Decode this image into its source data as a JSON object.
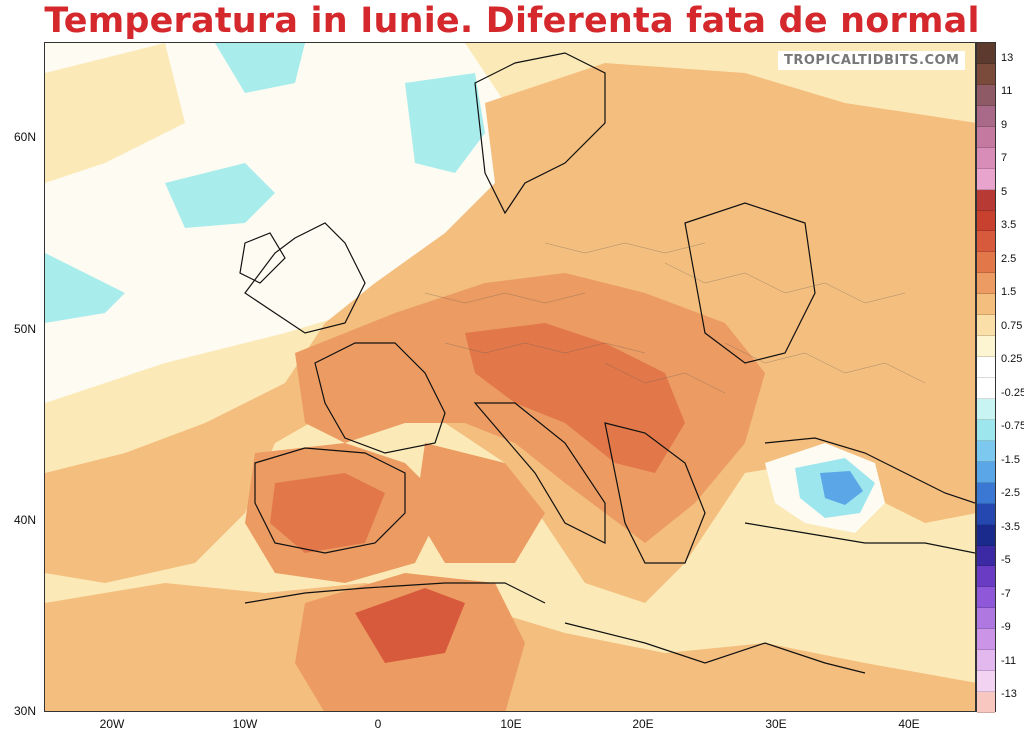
{
  "title": "Temperatura in Iunie. Diferenta fata de normal",
  "watermark": "TROPICALTIDBITS.COM",
  "lat_labels": [
    "60N",
    "50N",
    "40N",
    "30N"
  ],
  "lon_labels": [
    "20W",
    "10W",
    "0",
    "10E",
    "20E",
    "30E",
    "40E"
  ],
  "colorbar": {
    "labels": [
      "13",
      "11",
      "9",
      "7",
      "5",
      "3.5",
      "2.5",
      "1.5",
      "0.75",
      "0.25",
      "-0.25",
      "-0.75",
      "-1.5",
      "-2.5",
      "-3.5",
      "-5",
      "-7",
      "-9",
      "-11",
      "-13"
    ],
    "colors": [
      "#5c3a2e",
      "#7a4a3a",
      "#8e5a66",
      "#a86a88",
      "#c47aa0",
      "#d88cb8",
      "#e8a4cc",
      "#b83a34",
      "#c8402e",
      "#d85a3c",
      "#e2784a",
      "#ec9c62",
      "#f4be7e",
      "#fae0a8",
      "#fdf4d2",
      "#ffffff",
      "#ffffff",
      "#c8f4f4",
      "#9ee6ee",
      "#7cc8ee",
      "#5aa6e6",
      "#3a78d4",
      "#2448b0",
      "#1a2a8c",
      "#3c2aa4",
      "#6a3cc4",
      "#8e58d8",
      "#ae78e0",
      "#cc94e6",
      "#e2b8ee",
      "#f2d4f2",
      "#f8c8c0"
    ]
  },
  "features": {
    "ocean": "#fbeab8",
    "land": "#f0b07c",
    "coastline": "#111111"
  }
}
